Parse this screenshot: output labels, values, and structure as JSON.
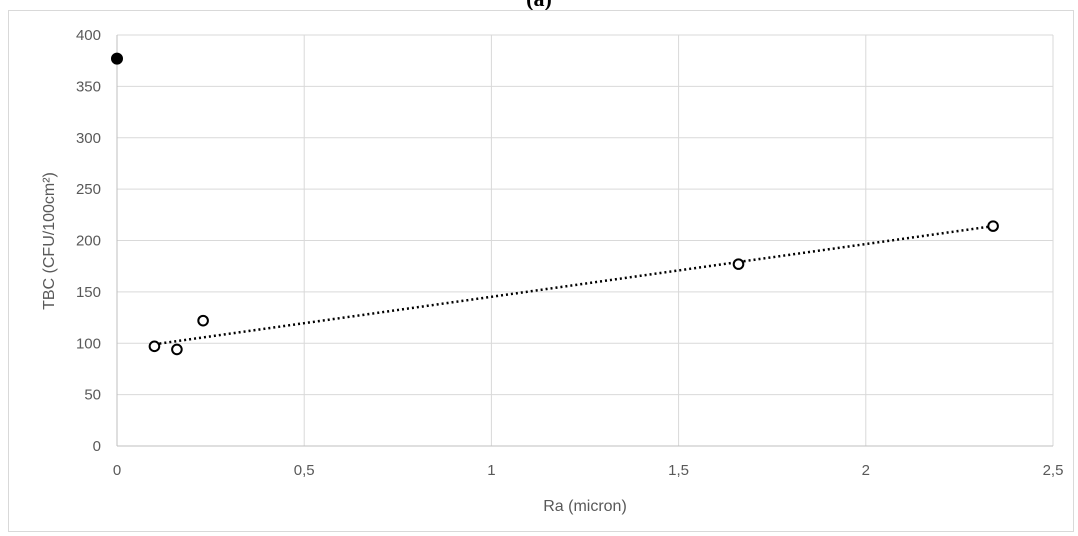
{
  "panel_label": "(a)",
  "chart_data": {
    "type": "scatter",
    "title": "",
    "xlabel": "Ra (micron)",
    "ylabel": "TBC (CFU/100cm²)",
    "xlim": [
      0,
      2.5
    ],
    "ylim": [
      0,
      400
    ],
    "x_ticks": [
      0,
      0.5,
      1,
      1.5,
      2,
      2.5
    ],
    "x_tick_labels": [
      "0",
      "0,5",
      "1",
      "1,5",
      "2",
      "2,5"
    ],
    "y_ticks": [
      0,
      50,
      100,
      150,
      200,
      250,
      300,
      350,
      400
    ],
    "y_tick_labels": [
      "0",
      "50",
      "100",
      "150",
      "200",
      "250",
      "300",
      "350",
      "400"
    ],
    "grid": true,
    "series": [
      {
        "marker": "filled-circle",
        "color": "#000000",
        "points": [
          {
            "x": 0,
            "y": 377
          }
        ]
      },
      {
        "marker": "open-circle",
        "color": "#000000",
        "points": [
          {
            "x": 0.1,
            "y": 97
          },
          {
            "x": 0.16,
            "y": 94
          },
          {
            "x": 0.23,
            "y": 122
          },
          {
            "x": 1.66,
            "y": 177
          },
          {
            "x": 2.34,
            "y": 214
          }
        ],
        "trendline": {
          "type": "linear",
          "style": "dotted",
          "from": {
            "x": 0.1,
            "y": 99
          },
          "to": {
            "x": 2.34,
            "y": 214
          }
        }
      }
    ]
  }
}
